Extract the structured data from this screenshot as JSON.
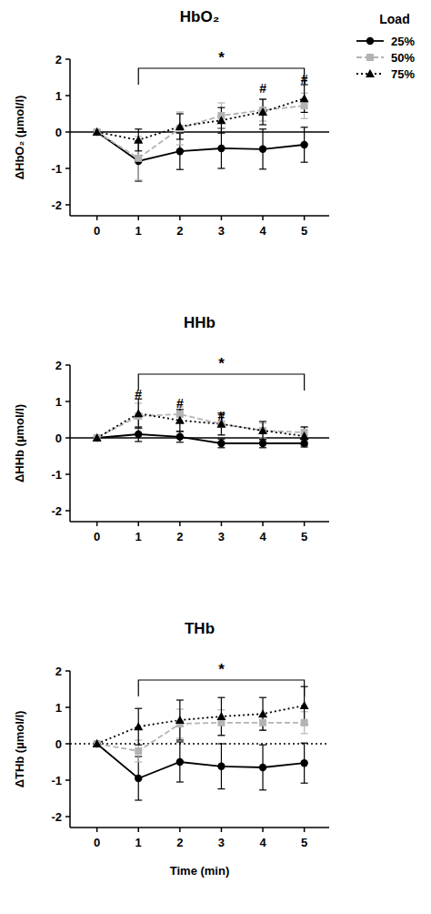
{
  "chart_data": [
    {
      "type": "line",
      "title": "HbO₂",
      "y_label": "ΔHbO₂ (µmol/l)",
      "x": [
        0,
        1,
        2,
        3,
        4,
        5
      ],
      "xlim": [
        -0.65,
        5.6
      ],
      "xticks": [
        0,
        1,
        2,
        3,
        4,
        5
      ],
      "ylim": [
        -2.3,
        2
      ],
      "yticks": [
        -2,
        -1,
        0,
        1,
        2
      ],
      "legend": "top-right",
      "legend_title": "Load",
      "series": [
        {
          "name": "25%",
          "color": "#000000",
          "marker": "circle",
          "line_style": "solid",
          "values": [
            0,
            -0.8,
            -0.53,
            -0.45,
            -0.47,
            -0.35
          ],
          "errors": [
            0,
            0.55,
            0.5,
            0.55,
            0.55,
            0.48
          ]
        },
        {
          "name": "50%",
          "color": "#b3b3b3",
          "marker": "square",
          "line_style": "dashed",
          "values": [
            0,
            -0.72,
            0.1,
            0.45,
            0.6,
            0.72
          ],
          "errors": [
            0,
            0.6,
            0.45,
            0.35,
            0.3,
            0.35
          ]
        },
        {
          "name": "75%",
          "color": "#000000",
          "marker": "triangle",
          "line_style": "dotted",
          "values": [
            0,
            -0.22,
            0.15,
            0.32,
            0.55,
            0.92
          ],
          "errors": [
            0,
            0.3,
            0.35,
            0.35,
            0.35,
            0.38
          ]
        }
      ],
      "annotations": [
        {
          "text": "*",
          "x": [
            1,
            5
          ],
          "y": 1.75
        },
        {
          "text": "#",
          "x": 4,
          "y": 1.2
        },
        {
          "text": "#",
          "x": 5,
          "y": 1.45
        }
      ]
    },
    {
      "type": "line",
      "title": "HHb",
      "y_label": "ΔHHb (µmol/l)",
      "x": [
        0,
        1,
        2,
        3,
        4,
        5
      ],
      "xlim": [
        -0.65,
        5.6
      ],
      "xticks": [
        0,
        1,
        2,
        3,
        4,
        5
      ],
      "ylim": [
        -2.3,
        2
      ],
      "yticks": [
        -2,
        -1,
        0,
        1,
        2
      ],
      "series": [
        {
          "name": "25%",
          "color": "#000000",
          "marker": "circle",
          "line_style": "solid",
          "values": [
            0,
            0.1,
            0.03,
            -0.15,
            -0.15,
            -0.15
          ],
          "errors": [
            0,
            0.2,
            0.15,
            0.12,
            0.12,
            0.1
          ]
        },
        {
          "name": "50%",
          "color": "#b3b3b3",
          "marker": "square",
          "line_style": "dashed",
          "values": [
            0,
            0.6,
            0.65,
            0.38,
            0.2,
            0.15
          ],
          "errors": [
            0,
            0.35,
            0.2,
            0.3,
            0.2,
            0.15
          ]
        },
        {
          "name": "75%",
          "color": "#000000",
          "marker": "triangle",
          "line_style": "dotted",
          "values": [
            0,
            0.67,
            0.48,
            0.38,
            0.2,
            0.05
          ],
          "errors": [
            0,
            0.4,
            0.3,
            0.3,
            0.25,
            0.25
          ]
        }
      ],
      "annotations": [
        {
          "text": "*",
          "x": [
            1,
            5
          ],
          "y": 1.75
        },
        {
          "text": "#",
          "x": 1,
          "y": 1.2
        },
        {
          "text": "#",
          "x": 2,
          "y": 0.95
        },
        {
          "text": "#",
          "x": 3,
          "y": 0.6
        }
      ]
    },
    {
      "type": "line",
      "title": "THb",
      "y_label": "ΔTHb (µmol/l)",
      "x_label": "Time (min)",
      "x": [
        0,
        1,
        2,
        3,
        4,
        5
      ],
      "xlim": [
        -0.65,
        5.6
      ],
      "xticks": [
        0,
        1,
        2,
        3,
        4,
        5
      ],
      "ylim": [
        -2.3,
        2
      ],
      "yticks": [
        -2,
        -1,
        0,
        1,
        2
      ],
      "series": [
        {
          "name": "25%",
          "color": "#000000",
          "marker": "circle",
          "line_style": "solid",
          "values": [
            0,
            -0.95,
            -0.5,
            -0.62,
            -0.65,
            -0.53
          ],
          "errors": [
            0,
            0.6,
            0.55,
            0.62,
            0.62,
            0.55
          ]
        },
        {
          "name": "50%",
          "color": "#b3b3b3",
          "marker": "square",
          "line_style": "dashed",
          "values": [
            0,
            -0.2,
            0.55,
            0.58,
            0.58,
            0.58
          ],
          "errors": [
            0,
            0.3,
            0.4,
            0.35,
            0.2,
            0.3
          ]
        },
        {
          "name": "75%",
          "color": "#000000",
          "marker": "triangle",
          "line_style": "dotted",
          "values": [
            0,
            0.47,
            0.65,
            0.75,
            0.82,
            1.05
          ],
          "errors": [
            0,
            0.5,
            0.55,
            0.52,
            0.45,
            0.52
          ]
        }
      ],
      "annotations": [
        {
          "text": "*",
          "x": [
            1,
            5
          ],
          "y": 1.75
        }
      ]
    }
  ]
}
